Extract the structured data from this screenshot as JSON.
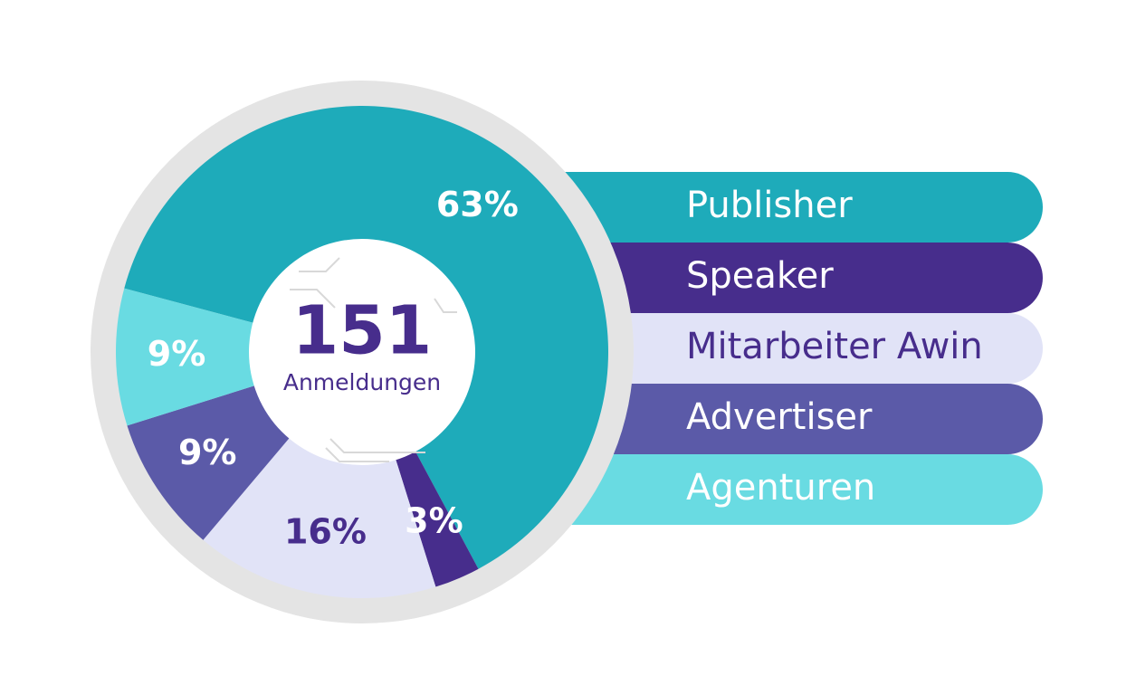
{
  "chart_data": {
    "type": "donut",
    "center_value": "151",
    "center_label": "Anmeldungen",
    "categories": [
      "Publisher",
      "Speaker",
      "Mitarbeiter Awin",
      "Advertiser",
      "Agenturen"
    ],
    "values": [
      63,
      3,
      16,
      9,
      9
    ],
    "value_labels": [
      "63%",
      "3%",
      "16%",
      "9%",
      "9%"
    ],
    "colors": [
      "#1eabba",
      "#472d8c",
      "#e1e3f7",
      "#5b5aa8",
      "#69dbe2"
    ],
    "text_colors": [
      "#ffffff",
      "#ffffff",
      "#472d8c",
      "#ffffff",
      "#ffffff"
    ]
  }
}
